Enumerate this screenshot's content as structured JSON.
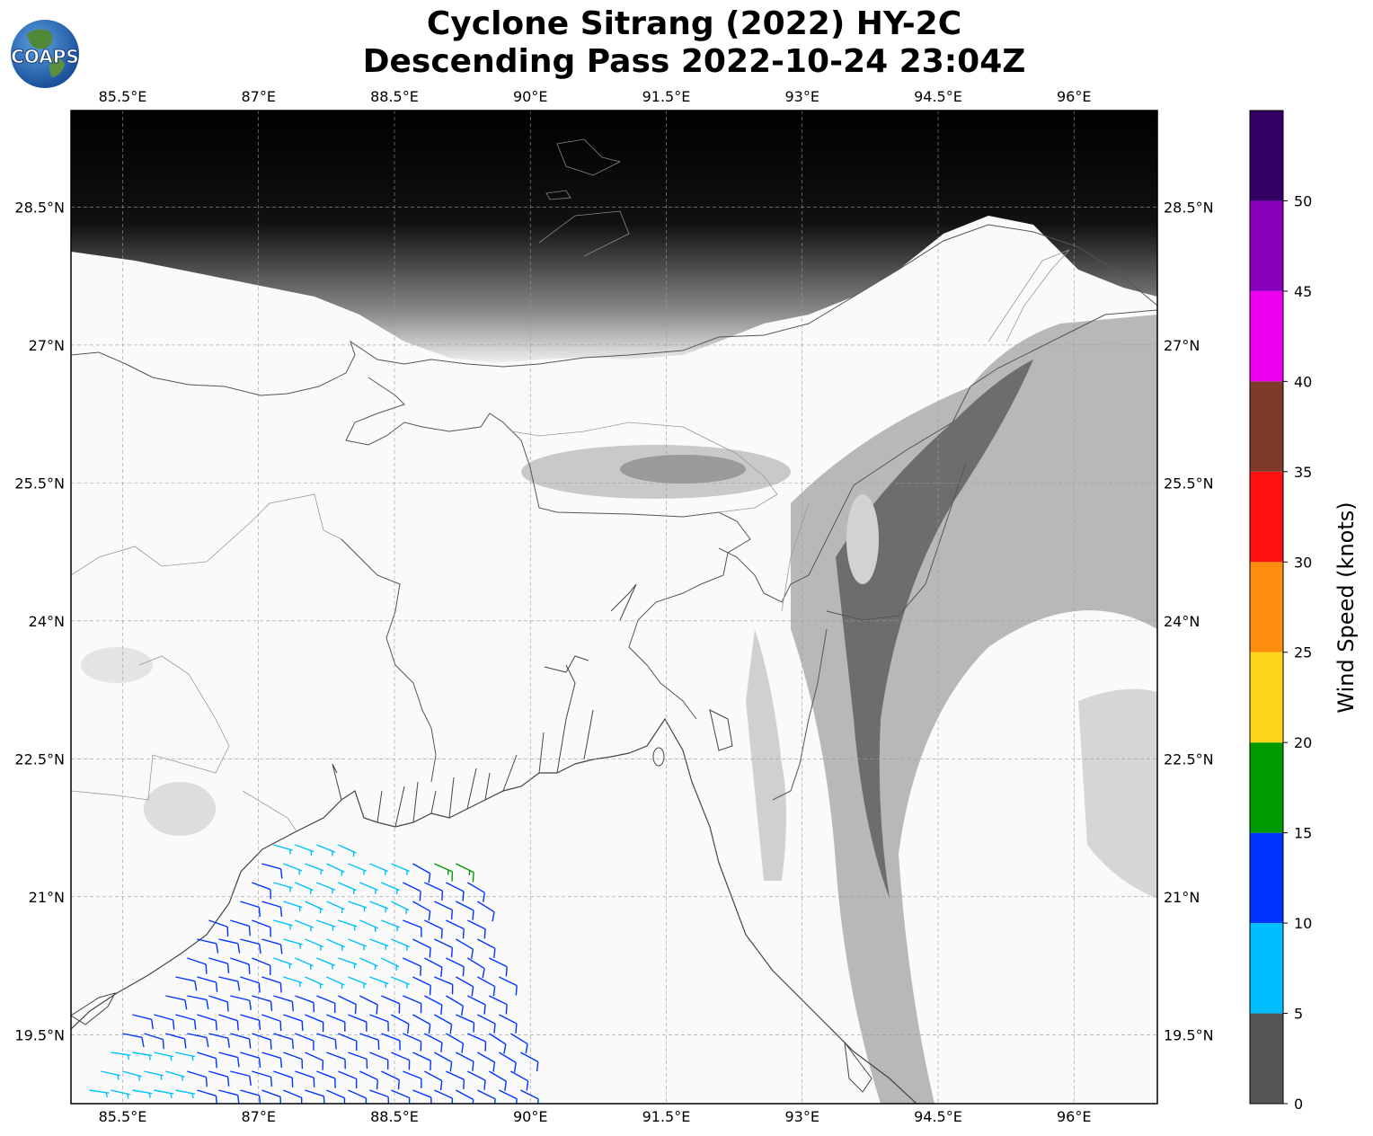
{
  "header": {
    "title_line1": "Cyclone Sitrang (2022) HY-2C",
    "title_line2": "Descending Pass 2022-10-24 23:04Z",
    "logo_text": "COAPS"
  },
  "map": {
    "lon_range": [
      84.93,
      96.92
    ],
    "lat_range": [
      18.75,
      29.55
    ],
    "lon_ticks": [
      "85.5°E",
      "87°E",
      "88.5°E",
      "90°E",
      "91.5°E",
      "93°E",
      "94.5°E",
      "96°E"
    ],
    "lon_tick_values": [
      85.5,
      87,
      88.5,
      90,
      91.5,
      93,
      94.5,
      96
    ],
    "lat_ticks": [
      "28.5°N",
      "27°N",
      "25.5°N",
      "24°N",
      "22.5°N",
      "21°N",
      "19.5°N"
    ],
    "lat_tick_values": [
      28.5,
      27,
      25.5,
      24,
      22.5,
      21,
      19.5
    ],
    "grid": true,
    "background": "grayscale-terrain"
  },
  "colorbar": {
    "label": "Wind Speed (knots)",
    "ticks": [
      "0",
      "5",
      "10",
      "15",
      "20",
      "25",
      "30",
      "35",
      "40",
      "45",
      "50"
    ],
    "bins": [
      {
        "min": 0,
        "max": 5,
        "color": "#555555"
      },
      {
        "min": 5,
        "max": 10,
        "color": "#00bfff"
      },
      {
        "min": 10,
        "max": 15,
        "color": "#0033ff"
      },
      {
        "min": 15,
        "max": 20,
        "color": "#009900"
      },
      {
        "min": 20,
        "max": 25,
        "color": "#ffd51a"
      },
      {
        "min": 25,
        "max": 30,
        "color": "#ff8c0d"
      },
      {
        "min": 30,
        "max": 35,
        "color": "#ff1111"
      },
      {
        "min": 35,
        "max": 40,
        "color": "#7f3b2a"
      },
      {
        "min": 40,
        "max": 45,
        "color": "#ee00ee"
      },
      {
        "min": 45,
        "max": 50,
        "color": "#8800bb"
      },
      {
        "min": 50,
        "max": 55,
        "color": "#330066"
      }
    ]
  }
}
